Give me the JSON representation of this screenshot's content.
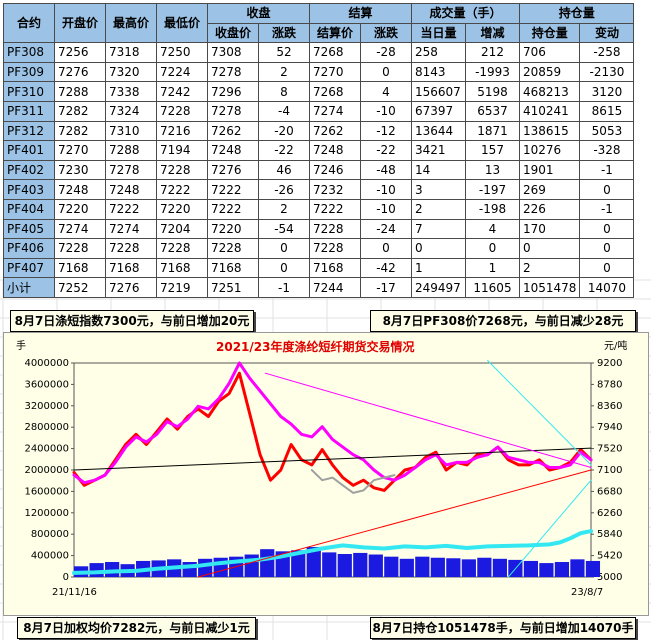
{
  "table": {
    "header_top": {
      "c0": "合约",
      "c1": "开盘价",
      "c2": "最高价",
      "c3": "最低价",
      "close_group": "收盘",
      "settle_group": "结算",
      "volume_group": "成交量（手）",
      "oi_group": "持仓量"
    },
    "header_sub": {
      "close": "收盘价",
      "close_chg": "涨跌",
      "settle": "结算价",
      "settle_chg": "涨跌",
      "volume": "当日量",
      "volume_chg": "增减",
      "oi": "持仓量",
      "oi_chg": "变动"
    },
    "rows": [
      {
        "c": "PF308",
        "open": "7256",
        "high": "7318",
        "low": "7250",
        "close": "7308",
        "cchg": "52",
        "settle": "7268",
        "schg": "-28",
        "vol": "258",
        "vchg": "212",
        "oi": "706",
        "oichg": "-258"
      },
      {
        "c": "PF309",
        "open": "7276",
        "high": "7320",
        "low": "7224",
        "close": "7278",
        "cchg": "2",
        "settle": "7270",
        "schg": "0",
        "vol": "8143",
        "vchg": "-1993",
        "oi": "20859",
        "oichg": "-2130"
      },
      {
        "c": "PF310",
        "open": "7288",
        "high": "7338",
        "low": "7242",
        "close": "7296",
        "cchg": "8",
        "settle": "7268",
        "schg": "4",
        "vol": "156607",
        "vchg": "5198",
        "oi": "468213",
        "oichg": "3120"
      },
      {
        "c": "PF311",
        "open": "7282",
        "high": "7324",
        "low": "7228",
        "close": "7278",
        "cchg": "-4",
        "settle": "7274",
        "schg": "-10",
        "vol": "67397",
        "vchg": "6537",
        "oi": "410241",
        "oichg": "8615"
      },
      {
        "c": "PF312",
        "open": "7282",
        "high": "7310",
        "low": "7216",
        "close": "7262",
        "cchg": "-20",
        "settle": "7262",
        "schg": "-12",
        "vol": "13644",
        "vchg": "1871",
        "oi": "138615",
        "oichg": "5053"
      },
      {
        "c": "PF401",
        "open": "7270",
        "high": "7288",
        "low": "7194",
        "close": "7248",
        "cchg": "-22",
        "settle": "7248",
        "schg": "-22",
        "vol": "3421",
        "vchg": "157",
        "oi": "10276",
        "oichg": "-328"
      },
      {
        "c": "PF402",
        "open": "7230",
        "high": "7278",
        "low": "7228",
        "close": "7276",
        "cchg": "46",
        "settle": "7246",
        "schg": "-48",
        "vol": "14",
        "vchg": "13",
        "oi": "1901",
        "oichg": "-1"
      },
      {
        "c": "PF403",
        "open": "7248",
        "high": "7248",
        "low": "7222",
        "close": "7222",
        "cchg": "-26",
        "settle": "7232",
        "schg": "-10",
        "vol": "3",
        "vchg": "-197",
        "oi": "269",
        "oichg": "0"
      },
      {
        "c": "PF404",
        "open": "7220",
        "high": "7222",
        "low": "7220",
        "close": "7222",
        "cchg": "2",
        "settle": "7222",
        "schg": "-10",
        "vol": "2",
        "vchg": "-198",
        "oi": "226",
        "oichg": "-1"
      },
      {
        "c": "PF405",
        "open": "7274",
        "high": "7274",
        "low": "7204",
        "close": "7220",
        "cchg": "-54",
        "settle": "7228",
        "schg": "-24",
        "vol": "7",
        "vchg": "4",
        "oi": "170",
        "oichg": "0"
      },
      {
        "c": "PF406",
        "open": "7228",
        "high": "7228",
        "low": "7228",
        "close": "7228",
        "cchg": "0",
        "settle": "7228",
        "schg": "0",
        "vol": "0",
        "vchg": "0",
        "oi": "0",
        "oichg": "0"
      },
      {
        "c": "PF407",
        "open": "7168",
        "high": "7168",
        "low": "7168",
        "close": "7168",
        "cchg": "0",
        "settle": "7168",
        "schg": "-42",
        "vol": "1",
        "vchg": "1",
        "oi": "2",
        "oichg": "0"
      },
      {
        "c": "小计",
        "open": "7252",
        "high": "7276",
        "low": "7219",
        "close": "7251",
        "cchg": "-1",
        "settle": "7244",
        "schg": "-17",
        "vol": "249497",
        "vchg": "11605",
        "oi": "1051478",
        "oichg": "14070"
      }
    ]
  },
  "captions": {
    "top_left": "8月7日涤短指数7300元，与前日增加20元",
    "top_right": "8月7日PF308价7268元，与前日减少28元",
    "bottom_left": "8月7日加权均价7282元，与前日减少1元",
    "bottom_right": "8月7日持仓1051478手，与前日增加14070手"
  },
  "colors": {
    "price_red": "#ff0000",
    "price_magenta": "#ff00ff",
    "price_gray": "#a0a0a0",
    "trend_black": "#000000",
    "oi_cyan": "#33e8f0",
    "volume_blue": "#1a1ae0",
    "title_red": "#e00000",
    "chart_bg": "#ffffe8",
    "header_blue": "#9cc3e6"
  },
  "chart_data": {
    "type": "line",
    "title": "2021/23年度涤纶短纤期货交易情况",
    "left_axis_unit": "手",
    "right_axis_unit": "元/吨",
    "left_ticks": [
      "4000000",
      "3600000",
      "3200000",
      "2800000",
      "2400000",
      "2000000",
      "1600000",
      "1200000",
      "800000",
      "400000",
      "0"
    ],
    "right_ticks": [
      "9200",
      "8780",
      "8360",
      "7940",
      "7520",
      "7100",
      "6680",
      "6260",
      "5840",
      "5420",
      "5000"
    ],
    "x_start_label": "21/11/16",
    "x_end_label": "23/8/7",
    "ylim_left": [
      0,
      4000000
    ],
    "ylim_right": [
      5000,
      9200
    ],
    "x_range": [
      0,
      100
    ],
    "grid": false,
    "series": [
      {
        "kind": "price",
        "color": "price_red",
        "x": [
          0,
          2,
          4,
          6,
          8,
          10,
          12,
          14,
          16,
          18,
          20,
          22,
          24,
          26,
          28,
          30,
          32,
          34,
          36,
          38,
          40,
          42,
          44,
          46,
          48,
          50,
          52,
          54,
          56,
          58,
          60,
          62,
          64,
          66,
          68,
          70,
          72,
          74,
          76,
          78,
          80,
          82,
          84,
          86,
          88,
          90,
          92,
          94,
          96,
          98,
          100
        ],
        "y": [
          7050,
          6800,
          6900,
          7000,
          7300,
          7600,
          7800,
          7600,
          7850,
          8100,
          7900,
          8150,
          8300,
          8150,
          8450,
          8600,
          9000,
          8200,
          7400,
          6900,
          7100,
          7600,
          7300,
          7200,
          7500,
          7200,
          6950,
          6800,
          6900,
          6750,
          6700,
          6900,
          7100,
          7150,
          7350,
          7450,
          7100,
          7250,
          7200,
          7400,
          7400,
          7550,
          7300,
          7200,
          7200,
          7300,
          7100,
          7150,
          7250,
          7500,
          7300
        ]
      },
      {
        "kind": "price",
        "color": "price_magenta",
        "x": [
          0,
          2,
          4,
          6,
          8,
          10,
          12,
          14,
          16,
          18,
          20,
          22,
          24,
          26,
          28,
          30,
          32,
          34,
          36,
          38,
          40,
          42,
          44,
          46,
          48,
          50,
          52,
          54,
          56,
          58,
          60,
          62,
          64,
          66,
          68,
          70,
          72,
          74,
          76,
          78,
          80,
          82,
          84,
          86,
          88,
          90,
          92,
          94,
          96,
          98,
          100
        ],
        "y": [
          7000,
          6850,
          6900,
          7000,
          7250,
          7550,
          7750,
          7650,
          7800,
          8050,
          7950,
          8100,
          8350,
          8300,
          8500,
          8800,
          9200,
          8900,
          8650,
          8400,
          8150,
          8000,
          7800,
          7750,
          7950,
          7700,
          7550,
          7400,
          7300,
          7100,
          6950,
          6900,
          7000,
          7150,
          7300,
          7400,
          7200,
          7250,
          7250,
          7350,
          7400,
          7550,
          7350,
          7300,
          7250,
          7250,
          7150,
          7150,
          7200,
          7450,
          7300
        ]
      },
      {
        "kind": "price",
        "color": "price_gray",
        "x": [
          46,
          48,
          50,
          52,
          54,
          56,
          58,
          60,
          62
        ],
        "y": [
          7100,
          6900,
          6950,
          6800,
          6650,
          6700,
          6900,
          6950,
          7000
        ]
      },
      {
        "kind": "price",
        "color": "oi_cyan",
        "x": [
          0,
          4,
          8,
          12,
          16,
          20,
          24,
          28,
          32,
          36,
          40,
          44,
          48,
          52,
          56,
          60,
          64,
          68,
          72,
          76,
          80,
          84,
          88,
          92,
          94,
          96,
          98,
          100
        ],
        "y": [
          5080,
          5090,
          5110,
          5120,
          5160,
          5190,
          5220,
          5270,
          5310,
          5340,
          5400,
          5480,
          5560,
          5620,
          5580,
          5560,
          5600,
          5580,
          5610,
          5570,
          5600,
          5610,
          5620,
          5640,
          5680,
          5760,
          5860,
          5900
        ]
      },
      {
        "kind": "trend",
        "color": "trend_black",
        "x": [
          0,
          100
        ],
        "y": [
          7100,
          7530
        ]
      },
      {
        "kind": "trend",
        "color": "price_magenta",
        "x": [
          37,
          100
        ],
        "y": [
          9000,
          7150
        ]
      },
      {
        "kind": "trend",
        "color": "price_red",
        "x": [
          24,
          100
        ],
        "y": [
          5000,
          7100
        ]
      },
      {
        "kind": "trend",
        "color": "oi_cyan",
        "x": [
          80,
          100
        ],
        "y": [
          9250,
          7200
        ]
      },
      {
        "kind": "trend",
        "color": "oi_cyan",
        "x": [
          84,
          100
        ],
        "y": [
          5000,
          6900
        ]
      },
      {
        "kind": "volume",
        "color": "volume_blue",
        "x": [
          0,
          3,
          6,
          9,
          12,
          15,
          18,
          21,
          24,
          27,
          30,
          33,
          36,
          39,
          42,
          45,
          48,
          51,
          54,
          57,
          60,
          63,
          66,
          69,
          72,
          75,
          78,
          81,
          84,
          87,
          90,
          93,
          96,
          99
        ],
        "y": [
          200000,
          260000,
          280000,
          240000,
          300000,
          310000,
          330000,
          280000,
          340000,
          360000,
          380000,
          420000,
          520000,
          480000,
          500000,
          560000,
          460000,
          430000,
          450000,
          420000,
          380000,
          340000,
          380000,
          360000,
          350000,
          330000,
          360000,
          340000,
          320000,
          300000,
          260000,
          280000,
          330000,
          300000
        ]
      }
    ]
  }
}
